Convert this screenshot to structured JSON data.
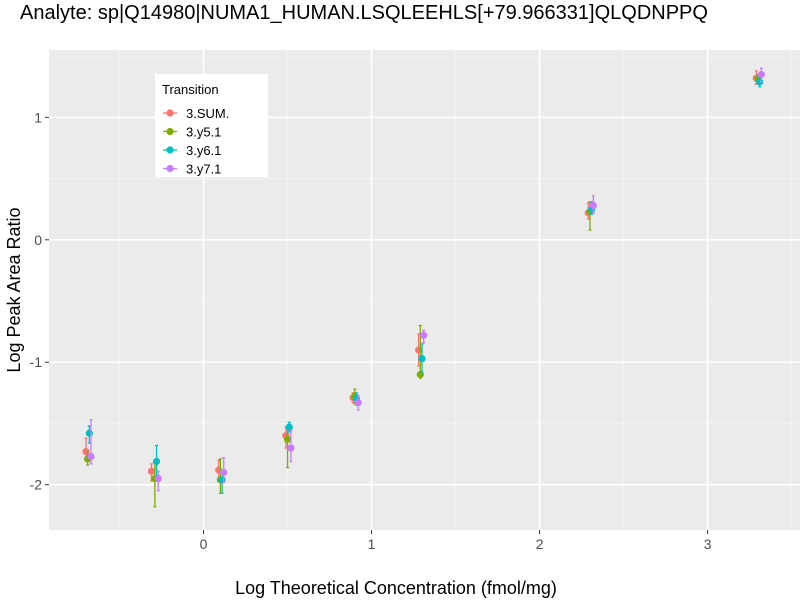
{
  "chart_data": {
    "type": "scatter",
    "title": "Analyte: sp|Q14980|NUMA1_HUMAN.LSQLEEHLS[+79.966331]QLQDNPPQ",
    "xlabel": "Log Theoretical Concentration (fmol/mg)",
    "ylabel": "Log Peak Area Ratio",
    "xlim": [
      -0.92,
      3.55
    ],
    "ylim": [
      -2.37,
      1.55
    ],
    "x_ticks": [
      0,
      1,
      2,
      3
    ],
    "y_ticks": [
      1,
      0,
      -1,
      -2
    ],
    "grid": true,
    "background": "#ebebeb",
    "legend": {
      "title": "Transition",
      "position": "top-left"
    },
    "series": [
      {
        "name": "3.SUM.",
        "color": "#f8766d",
        "points": [
          {
            "x": -0.7,
            "y": -1.73,
            "lo": -1.8,
            "hi": -1.62
          },
          {
            "x": -0.31,
            "y": -1.89,
            "lo": -1.97,
            "hi": -1.83
          },
          {
            "x": 0.09,
            "y": -1.88,
            "lo": -1.95,
            "hi": -1.8
          },
          {
            "x": 0.49,
            "y": -1.6,
            "lo": -1.7,
            "hi": -1.53
          },
          {
            "x": 0.89,
            "y": -1.29,
            "lo": -1.33,
            "hi": -1.25
          },
          {
            "x": 1.28,
            "y": -0.9,
            "lo": -1.03,
            "hi": -0.77
          },
          {
            "x": 2.29,
            "y": 0.22,
            "lo": 0.17,
            "hi": 0.3
          },
          {
            "x": 3.29,
            "y": 1.32,
            "lo": 1.27,
            "hi": 1.38
          }
        ]
      },
      {
        "name": "3.y5.1",
        "color": "#7cae00",
        "points": [
          {
            "x": -0.69,
            "y": -1.79,
            "lo": -1.84,
            "hi": -1.73
          },
          {
            "x": -0.29,
            "y": -1.95,
            "lo": -2.18,
            "hi": -1.82
          },
          {
            "x": 0.1,
            "y": -1.96,
            "lo": -2.07,
            "hi": -1.79
          },
          {
            "x": 0.5,
            "y": -1.63,
            "lo": -1.86,
            "hi": -1.52
          },
          {
            "x": 0.9,
            "y": -1.28,
            "lo": -1.34,
            "hi": -1.22
          },
          {
            "x": 1.29,
            "y": -1.1,
            "lo": -1.13,
            "hi": -0.7
          },
          {
            "x": 2.3,
            "y": 0.23,
            "lo": 0.08,
            "hi": 0.31
          },
          {
            "x": 3.3,
            "y": 1.31,
            "lo": 1.28,
            "hi": 1.35
          }
        ]
      },
      {
        "name": "3.y6.1",
        "color": "#00bfc4",
        "points": [
          {
            "x": -0.68,
            "y": -1.58,
            "lo": -1.66,
            "hi": -1.52
          },
          {
            "x": -0.28,
            "y": -1.81,
            "lo": -1.94,
            "hi": -1.68
          },
          {
            "x": 0.11,
            "y": -1.96,
            "lo": -2.07,
            "hi": -1.89
          },
          {
            "x": 0.51,
            "y": -1.53,
            "lo": -1.57,
            "hi": -1.49
          },
          {
            "x": 0.91,
            "y": -1.3,
            "lo": -1.35,
            "hi": -1.25
          },
          {
            "x": 1.3,
            "y": -0.97,
            "lo": -1.08,
            "hi": -0.85
          },
          {
            "x": 2.31,
            "y": 0.25,
            "lo": 0.21,
            "hi": 0.31
          },
          {
            "x": 3.31,
            "y": 1.29,
            "lo": 1.25,
            "hi": 1.33
          }
        ]
      },
      {
        "name": "3.y7.1",
        "color": "#c77cff",
        "points": [
          {
            "x": -0.67,
            "y": -1.77,
            "lo": -1.83,
            "hi": -1.47
          },
          {
            "x": -0.27,
            "y": -1.95,
            "lo": -2.05,
            "hi": -1.89
          },
          {
            "x": 0.12,
            "y": -1.9,
            "lo": -1.98,
            "hi": -1.78
          },
          {
            "x": 0.52,
            "y": -1.7,
            "lo": -1.81,
            "hi": -1.56
          },
          {
            "x": 0.92,
            "y": -1.33,
            "lo": -1.39,
            "hi": -1.27
          },
          {
            "x": 1.31,
            "y": -0.78,
            "lo": -0.84,
            "hi": -0.74
          },
          {
            "x": 2.32,
            "y": 0.28,
            "lo": 0.22,
            "hi": 0.36
          },
          {
            "x": 3.32,
            "y": 1.35,
            "lo": 1.29,
            "hi": 1.4
          }
        ]
      }
    ]
  }
}
